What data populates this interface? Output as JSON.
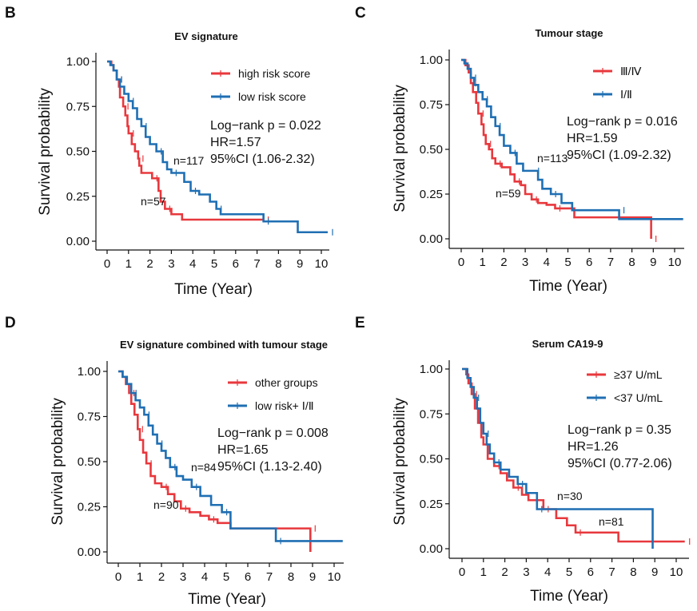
{
  "chart_data": [
    {
      "type": "line",
      "panel": "B",
      "title": "EV signature",
      "xlabel": "Time (Year)",
      "ylabel": "Survival probability",
      "xlim": [
        0,
        10.4
      ],
      "ylim": [
        0,
        1
      ],
      "xticks": [
        "0",
        "1",
        "2",
        "3",
        "4",
        "5",
        "6",
        "7",
        "8",
        "9",
        "10"
      ],
      "yticks": [
        "0.00",
        "0.25",
        "0.50",
        "0.75",
        "1.00"
      ],
      "legend_position": "top-right",
      "stats": [
        "Log−rank p = 0.022",
        "HR=1.57",
        "95%CI (1.06-2.32)"
      ],
      "series": [
        {
          "name": "high risk score",
          "color": "#e8383d",
          "n_label": "n=57",
          "points": [
            [
              0,
              1
            ],
            [
              0.2,
              0.98
            ],
            [
              0.3,
              0.95
            ],
            [
              0.45,
              0.9
            ],
            [
              0.55,
              0.86
            ],
            [
              0.6,
              0.8
            ],
            [
              0.75,
              0.75
            ],
            [
              0.85,
              0.7
            ],
            [
              0.95,
              0.64
            ],
            [
              1.0,
              0.6
            ],
            [
              1.15,
              0.54
            ],
            [
              1.3,
              0.5
            ],
            [
              1.45,
              0.46
            ],
            [
              1.5,
              0.42
            ],
            [
              1.6,
              0.38
            ],
            [
              2.1,
              0.35
            ],
            [
              2.4,
              0.28
            ],
            [
              2.5,
              0.22
            ],
            [
              2.7,
              0.18
            ],
            [
              3.0,
              0.15
            ],
            [
              3.5,
              0.12
            ],
            [
              7.3,
              0.12
            ]
          ]
        },
        {
          "name": "low risk score",
          "color": "#1f6fb3",
          "n_label": "n=117",
          "points": [
            [
              0,
              1
            ],
            [
              0.15,
              0.98
            ],
            [
              0.3,
              0.95
            ],
            [
              0.45,
              0.9
            ],
            [
              0.6,
              0.86
            ],
            [
              0.8,
              0.82
            ],
            [
              1.0,
              0.78
            ],
            [
              1.2,
              0.74
            ],
            [
              1.4,
              0.68
            ],
            [
              1.6,
              0.64
            ],
            [
              1.8,
              0.58
            ],
            [
              2.0,
              0.54
            ],
            [
              2.3,
              0.5
            ],
            [
              2.6,
              0.44
            ],
            [
              2.8,
              0.4
            ],
            [
              3.0,
              0.38
            ],
            [
              3.4,
              0.38
            ],
            [
              3.6,
              0.33
            ],
            [
              3.9,
              0.28
            ],
            [
              4.3,
              0.26
            ],
            [
              4.8,
              0.22
            ],
            [
              5.1,
              0.18
            ],
            [
              5.3,
              0.15
            ],
            [
              7.3,
              0.15
            ],
            [
              7.3,
              0.11
            ],
            [
              8.9,
              0.11
            ],
            [
              8.9,
              0.05
            ],
            [
              10.3,
              0.05
            ]
          ]
        }
      ]
    },
    {
      "type": "line",
      "panel": "C",
      "title": "Tumour stage",
      "xlabel": "Time (Year)",
      "ylabel": "Survival probability",
      "xlim": [
        0,
        10.4
      ],
      "ylim": [
        0,
        1
      ],
      "xticks": [
        "0",
        "1",
        "2",
        "3",
        "4",
        "5",
        "6",
        "7",
        "8",
        "9",
        "10"
      ],
      "yticks": [
        "0.00",
        "0.25",
        "0.50",
        "0.75",
        "1.00"
      ],
      "legend_position": "top-right",
      "stats": [
        "Log−rank p = 0.016",
        "HR=1.59",
        "95%CI (1.09-2.32)"
      ],
      "series": [
        {
          "name": "Ⅲ/Ⅳ",
          "color": "#e8383d",
          "n_label": "n=59",
          "points": [
            [
              0,
              1
            ],
            [
              0.2,
              0.97
            ],
            [
              0.35,
              0.93
            ],
            [
              0.45,
              0.87
            ],
            [
              0.55,
              0.82
            ],
            [
              0.7,
              0.76
            ],
            [
              0.8,
              0.7
            ],
            [
              0.95,
              0.64
            ],
            [
              1.05,
              0.58
            ],
            [
              1.15,
              0.53
            ],
            [
              1.3,
              0.5
            ],
            [
              1.45,
              0.45
            ],
            [
              1.6,
              0.42
            ],
            [
              1.9,
              0.4
            ],
            [
              2.3,
              0.36
            ],
            [
              2.5,
              0.32
            ],
            [
              2.8,
              0.3
            ],
            [
              3.0,
              0.25
            ],
            [
              3.3,
              0.22
            ],
            [
              3.6,
              0.2
            ],
            [
              4.0,
              0.19
            ],
            [
              4.4,
              0.17
            ],
            [
              5.3,
              0.12
            ],
            [
              8.9,
              0.12
            ],
            [
              8.9,
              0.0
            ]
          ]
        },
        {
          "name": "Ⅰ/Ⅱ",
          "color": "#1f6fb3",
          "n_label": "n=113",
          "points": [
            [
              0,
              1
            ],
            [
              0.15,
              0.98
            ],
            [
              0.3,
              0.95
            ],
            [
              0.45,
              0.9
            ],
            [
              0.6,
              0.86
            ],
            [
              0.8,
              0.82
            ],
            [
              1.0,
              0.78
            ],
            [
              1.2,
              0.74
            ],
            [
              1.4,
              0.68
            ],
            [
              1.6,
              0.63
            ],
            [
              1.8,
              0.58
            ],
            [
              2.0,
              0.52
            ],
            [
              2.3,
              0.48
            ],
            [
              2.6,
              0.42
            ],
            [
              2.9,
              0.38
            ],
            [
              3.4,
              0.38
            ],
            [
              3.6,
              0.33
            ],
            [
              3.8,
              0.28
            ],
            [
              4.2,
              0.25
            ],
            [
              4.7,
              0.2
            ],
            [
              5.2,
              0.16
            ],
            [
              7.4,
              0.16
            ],
            [
              7.4,
              0.11
            ],
            [
              10.4,
              0.11
            ]
          ]
        }
      ]
    },
    {
      "type": "line",
      "panel": "D",
      "title": "EV signature combined with tumour stage",
      "xlabel": "Time (Year)",
      "ylabel": "Survival probability",
      "xlim": [
        0,
        10.4
      ],
      "ylim": [
        0,
        1
      ],
      "xticks": [
        "0",
        "1",
        "2",
        "3",
        "4",
        "5",
        "6",
        "7",
        "8",
        "9",
        "10"
      ],
      "yticks": [
        "0.00",
        "0.25",
        "0.50",
        "0.75",
        "1.00"
      ],
      "legend_position": "top-right",
      "stats": [
        "Log−rank p = 0.008",
        "HR=1.65",
        "95%CI (1.13-2.40)"
      ],
      "series": [
        {
          "name": "other groups",
          "color": "#e8383d",
          "n_label": "n=90",
          "points": [
            [
              0,
              1
            ],
            [
              0.2,
              0.97
            ],
            [
              0.35,
              0.93
            ],
            [
              0.5,
              0.88
            ],
            [
              0.6,
              0.82
            ],
            [
              0.75,
              0.76
            ],
            [
              0.9,
              0.68
            ],
            [
              1.0,
              0.62
            ],
            [
              1.15,
              0.55
            ],
            [
              1.3,
              0.49
            ],
            [
              1.5,
              0.42
            ],
            [
              1.7,
              0.38
            ],
            [
              2.0,
              0.36
            ],
            [
              2.3,
              0.32
            ],
            [
              2.6,
              0.28
            ],
            [
              2.9,
              0.24
            ],
            [
              3.3,
              0.22
            ],
            [
              3.8,
              0.2
            ],
            [
              4.2,
              0.18
            ],
            [
              4.6,
              0.16
            ],
            [
              5.2,
              0.13
            ],
            [
              8.9,
              0.13
            ],
            [
              8.9,
              0.0
            ]
          ]
        },
        {
          "name": "low risk+ Ⅰ/Ⅱ",
          "color": "#1f6fb3",
          "n_label": "n=84",
          "points": [
            [
              0,
              1
            ],
            [
              0.2,
              0.97
            ],
            [
              0.4,
              0.93
            ],
            [
              0.6,
              0.88
            ],
            [
              0.8,
              0.84
            ],
            [
              1.0,
              0.8
            ],
            [
              1.2,
              0.76
            ],
            [
              1.4,
              0.7
            ],
            [
              1.6,
              0.65
            ],
            [
              1.8,
              0.6
            ],
            [
              2.0,
              0.56
            ],
            [
              2.2,
              0.52
            ],
            [
              2.4,
              0.47
            ],
            [
              2.7,
              0.42
            ],
            [
              3.0,
              0.4
            ],
            [
              3.4,
              0.36
            ],
            [
              3.8,
              0.31
            ],
            [
              4.3,
              0.26
            ],
            [
              4.8,
              0.22
            ],
            [
              5.2,
              0.13
            ],
            [
              7.3,
              0.13
            ],
            [
              7.3,
              0.06
            ],
            [
              10.4,
              0.06
            ]
          ]
        }
      ]
    },
    {
      "type": "line",
      "panel": "E",
      "title": "Serum CA19-9",
      "xlabel": "Time (Year)",
      "ylabel": "Survival probability",
      "xlim": [
        0,
        10.4
      ],
      "ylim": [
        0,
        1
      ],
      "xticks": [
        "0",
        "1",
        "2",
        "3",
        "4",
        "5",
        "6",
        "7",
        "8",
        "9",
        "10"
      ],
      "yticks": [
        "0.00",
        "0.25",
        "0.50",
        "0.75",
        "1.00"
      ],
      "legend_position": "top-right",
      "stats": [
        "Log−rank p = 0.35",
        "HR=1.26",
        "95%CI (0.77-2.06)"
      ],
      "series": [
        {
          "name": "≥37 U/mL",
          "color": "#e8383d",
          "n_label": "n=81",
          "points": [
            [
              0,
              1
            ],
            [
              0.2,
              0.97
            ],
            [
              0.3,
              0.92
            ],
            [
              0.45,
              0.86
            ],
            [
              0.6,
              0.78
            ],
            [
              0.75,
              0.7
            ],
            [
              0.9,
              0.62
            ],
            [
              1.0,
              0.58
            ],
            [
              1.2,
              0.5
            ],
            [
              1.5,
              0.46
            ],
            [
              1.8,
              0.42
            ],
            [
              2.1,
              0.38
            ],
            [
              2.4,
              0.34
            ],
            [
              2.8,
              0.3
            ],
            [
              3.1,
              0.27
            ],
            [
              3.8,
              0.22
            ],
            [
              4.4,
              0.17
            ],
            [
              4.9,
              0.13
            ],
            [
              5.3,
              0.09
            ],
            [
              7.3,
              0.09
            ],
            [
              7.3,
              0.04
            ],
            [
              10.4,
              0.04
            ]
          ]
        },
        {
          "name": "<37 U/mL",
          "color": "#1f6fb3",
          "n_label": "n=30",
          "points": [
            [
              0,
              1
            ],
            [
              0.25,
              0.95
            ],
            [
              0.4,
              0.9
            ],
            [
              0.55,
              0.84
            ],
            [
              0.7,
              0.78
            ],
            [
              0.85,
              0.7
            ],
            [
              1.0,
              0.64
            ],
            [
              1.15,
              0.58
            ],
            [
              1.3,
              0.53
            ],
            [
              1.5,
              0.48
            ],
            [
              1.8,
              0.44
            ],
            [
              2.2,
              0.4
            ],
            [
              2.6,
              0.36
            ],
            [
              3.0,
              0.31
            ],
            [
              3.5,
              0.31
            ],
            [
              3.5,
              0.22
            ],
            [
              8.9,
              0.22
            ],
            [
              8.9,
              0.0
            ]
          ]
        }
      ]
    }
  ]
}
